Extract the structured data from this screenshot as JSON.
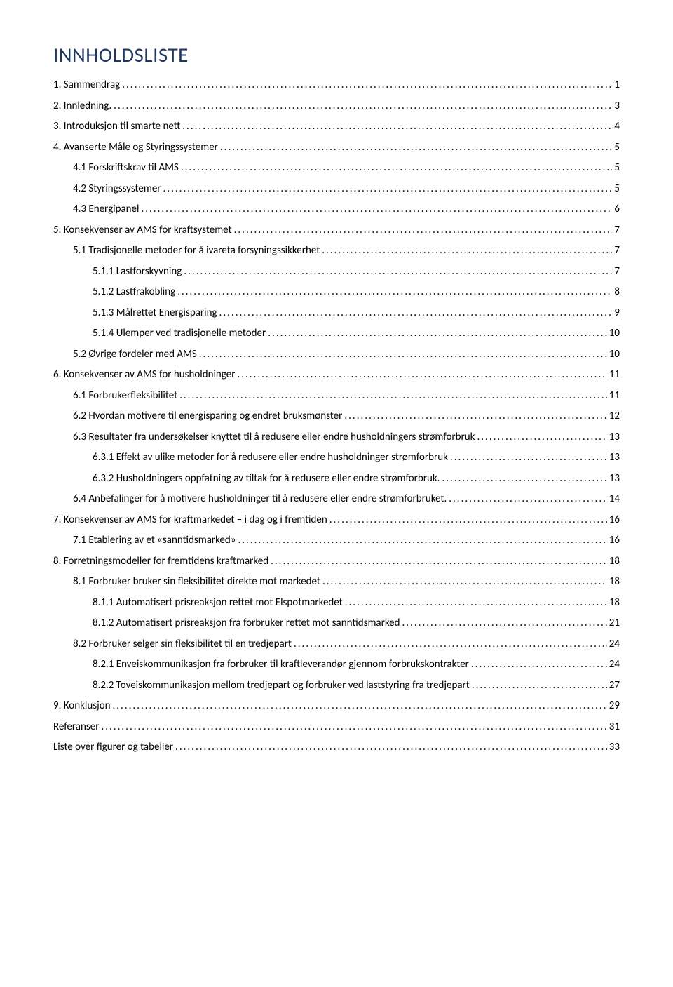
{
  "title": "INNHOLDSLISTE",
  "colors": {
    "title": "#1f3863",
    "text": "#000000",
    "background": "#ffffff"
  },
  "typography": {
    "title_fontsize": 29,
    "body_fontsize": 15,
    "font_family": "Calibri"
  },
  "toc": [
    {
      "level": 1,
      "label": "1. Sammendrag",
      "page": "1"
    },
    {
      "level": 1,
      "label": "2. Innledning.",
      "page": "3"
    },
    {
      "level": 1,
      "label": "3. Introduksjon til smarte nett",
      "page": "4"
    },
    {
      "level": 1,
      "label": "4. Avanserte Måle og Styringssystemer",
      "page": "5"
    },
    {
      "level": 2,
      "label": "4.1 Forskriftskrav til AMS",
      "page": "5"
    },
    {
      "level": 2,
      "label": "4.2 Styringssystemer",
      "page": "5"
    },
    {
      "level": 2,
      "label": "4.3 Energipanel",
      "page": "6"
    },
    {
      "level": 1,
      "label": "5. Konsekvenser av AMS for kraftsystemet",
      "page": "7"
    },
    {
      "level": 2,
      "label": "5.1 Tradisjonelle metoder for å ivareta forsyningssikkerhet",
      "page": "7"
    },
    {
      "level": 3,
      "label": "5.1.1 Lastforskyvning",
      "page": "7"
    },
    {
      "level": 3,
      "label": "5.1.2 Lastfrakobling",
      "page": "8"
    },
    {
      "level": 3,
      "label": "5.1.3 Målrettet Energisparing",
      "page": "9"
    },
    {
      "level": 3,
      "label": "5.1.4 Ulemper ved tradisjonelle metoder",
      "page": "10"
    },
    {
      "level": 2,
      "label": "5.2 Øvrige fordeler med AMS",
      "page": "10"
    },
    {
      "level": 1,
      "label": "6. Konsekvenser av AMS for husholdninger",
      "page": "11"
    },
    {
      "level": 2,
      "label": "6.1 Forbrukerfleksibilitet",
      "page": "11"
    },
    {
      "level": 2,
      "label": "6.2 Hvordan motivere til energisparing og endret bruksmønster",
      "page": "12"
    },
    {
      "level": 2,
      "label": "6.3 Resultater fra undersøkelser knyttet til å redusere eller endre husholdningers strømforbruk",
      "page": "13"
    },
    {
      "level": 3,
      "label": "6.3.1 Effekt av ulike metoder for å redusere eller endre husholdninger strømforbruk",
      "page": "13"
    },
    {
      "level": 3,
      "label": "6.3.2 Husholdningers oppfatning av tiltak for å redusere eller endre strømforbruk.",
      "page": "13"
    },
    {
      "level": 2,
      "label": "6.4 Anbefalinger for å motivere husholdninger til å redusere eller endre strømforbruket.",
      "page": "14"
    },
    {
      "level": 1,
      "label": "7. Konsekvenser av AMS for kraftmarkedet – i dag og i fremtiden",
      "page": "16"
    },
    {
      "level": 2,
      "label": "7.1 Etablering av et «sanntidsmarked»",
      "page": "16"
    },
    {
      "level": 1,
      "label": "8. Forretningsmodeller for fremtidens kraftmarked",
      "page": "18"
    },
    {
      "level": 2,
      "label": "8.1 Forbruker bruker sin fleksibilitet direkte mot markedet",
      "page": "18"
    },
    {
      "level": 3,
      "label": "8.1.1 Automatisert prisreaksjon rettet mot Elspotmarkedet",
      "page": "18"
    },
    {
      "level": 3,
      "label": "8.1.2 Automatisert prisreaksjon fra forbruker rettet mot sanntidsmarked",
      "page": "21"
    },
    {
      "level": 2,
      "label": "8.2 Forbruker selger sin fleksibilitet til en tredjepart",
      "page": "24"
    },
    {
      "level": 3,
      "label": "8.2.1 Enveiskommunikasjon fra forbruker til kraftleverandør gjennom forbrukskontrakter",
      "page": "24"
    },
    {
      "level": 3,
      "label": "8.2.2 Toveiskommunikasjon mellom tredjepart og forbruker ved laststyring fra tredjepart",
      "page": "27"
    },
    {
      "level": 1,
      "label": "9. Konklusjon",
      "page": "29"
    },
    {
      "level": 1,
      "label": "Referanser",
      "page": "31"
    },
    {
      "level": 1,
      "label": "Liste over figurer og tabeller",
      "page": "33"
    }
  ]
}
